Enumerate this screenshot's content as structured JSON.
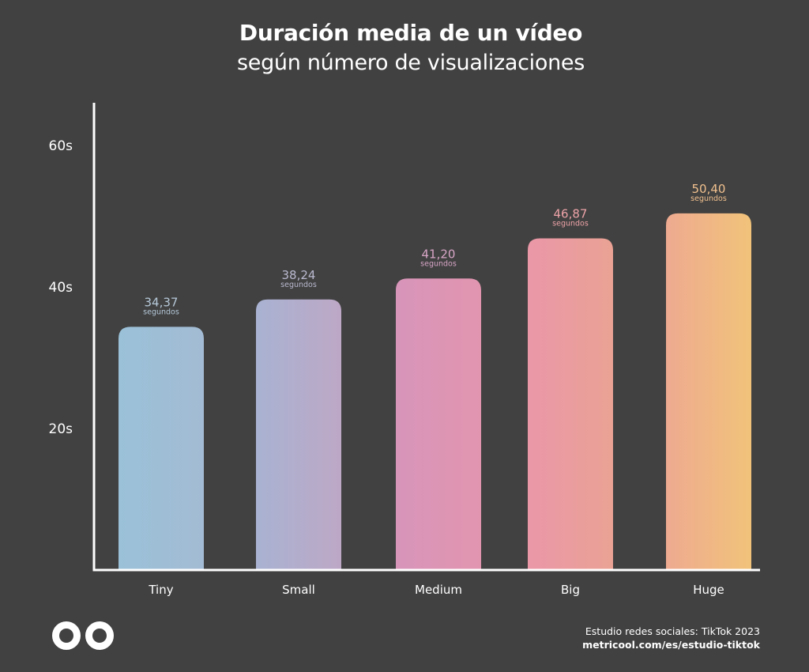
{
  "chart_data": {
    "type": "bar",
    "title": "Duración media de un vídeo",
    "subtitle": "según número de visualizaciones",
    "categories": [
      "Tiny",
      "Small",
      "Medium",
      "Big",
      "Huge"
    ],
    "values": [
      34.37,
      38.24,
      41.2,
      46.87,
      50.4
    ],
    "value_labels": [
      "34,37",
      "38,24",
      "41,20",
      "46,87",
      "50,40"
    ],
    "value_unit": "segundos",
    "yticks": [
      20,
      40,
      60
    ],
    "ytick_labels": [
      "20s",
      "40s",
      "60s"
    ],
    "ylim": [
      0,
      66
    ],
    "grid": false,
    "bar_colors": [
      [
        "#9ac1d8",
        "#a3bbd4"
      ],
      [
        "#a9b2d2",
        "#bda8c6"
      ],
      [
        "#d795ba",
        "#e295af"
      ],
      [
        "#ea97a8",
        "#eaa294"
      ],
      [
        "#eeaa90",
        "#f1c37a"
      ]
    ],
    "label_colors": [
      "#b5c8d8",
      "#b9b9d0",
      "#d7a5c6",
      "#eda3a8",
      "#f0c08e"
    ]
  },
  "footer": {
    "study": "Estudio redes sociales: TikTok 2023",
    "link": "metricool.com/es/estudio-tiktok"
  },
  "colors": {
    "background": "#414141",
    "axis": "#ffffff",
    "text": "#ffffff"
  },
  "logo_icon": "metricool-infinity-logo-icon"
}
